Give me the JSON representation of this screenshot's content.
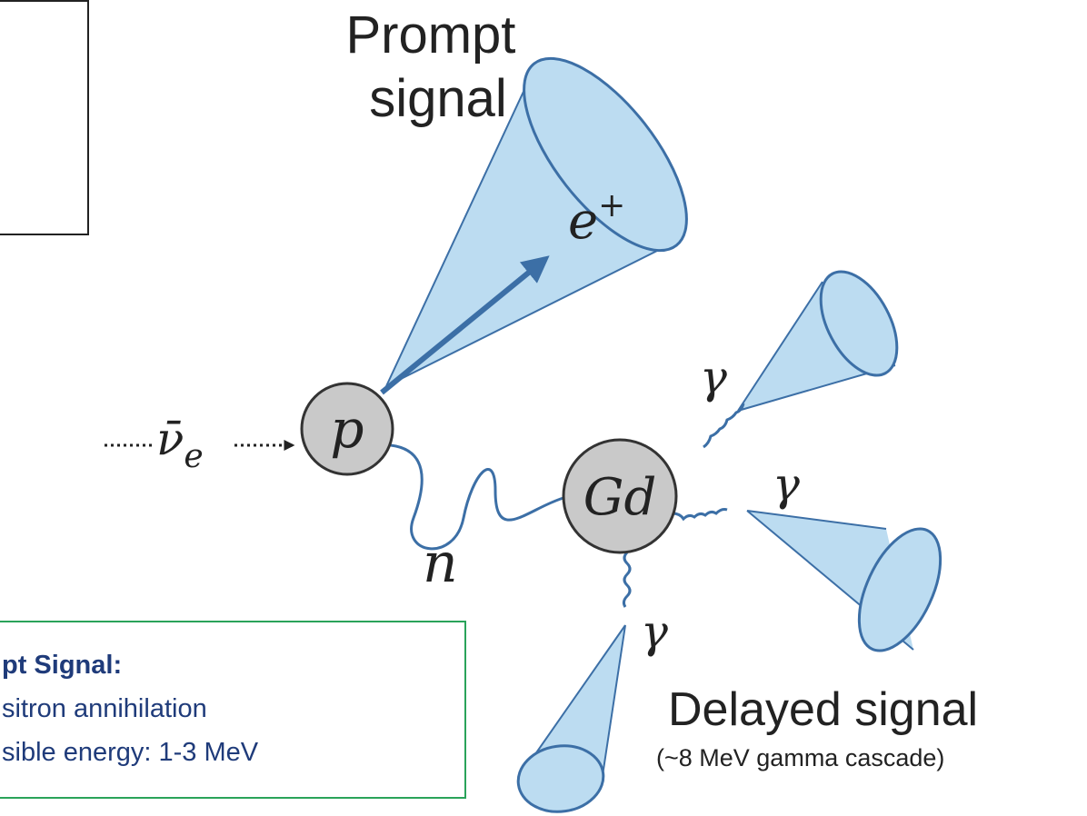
{
  "diagram": {
    "prompt_title": [
      "Prompt",
      "signal"
    ],
    "positron": {
      "symbol": "e",
      "sup": "+"
    },
    "proton": "p",
    "gadolinium": "Gd",
    "neutron": "n",
    "antineutrino": {
      "symbol": "ν̄",
      "sub": "e"
    },
    "gammas": [
      "γ",
      "γ",
      "γ"
    ],
    "delayed_title": "Delayed signal",
    "delayed_subtitle": "(~8 MeV gamma cascade)",
    "info_box": {
      "heading": "pt Signal:",
      "lines": [
        "sitron annihilation",
        "sible energy: 1-3 MeV"
      ]
    }
  }
}
